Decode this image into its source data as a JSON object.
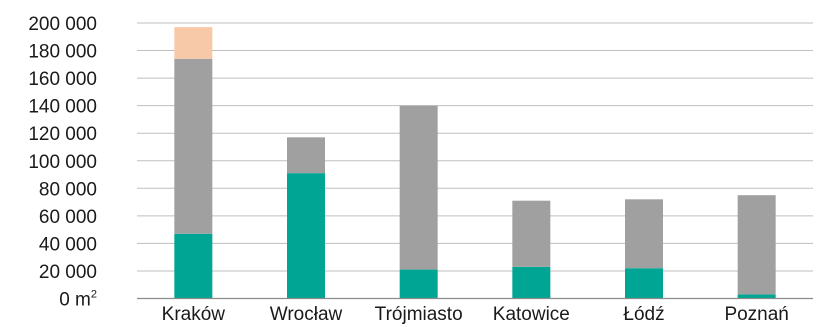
{
  "chart_data": {
    "type": "bar",
    "stacked": true,
    "categories": [
      "Kraków",
      "Wrocław",
      "Trójmiasto",
      "Katowice",
      "Łódź",
      "Poznań"
    ],
    "series": [
      {
        "color": "#00a693",
        "values": [
          47000,
          91000,
          21000,
          23000,
          22000,
          3000
        ]
      },
      {
        "color": "#a0a0a0",
        "values": [
          127000,
          26000,
          119000,
          48000,
          50000,
          72000
        ]
      },
      {
        "color": "#f8c9a8",
        "values": [
          23000,
          0,
          0,
          0,
          0,
          0
        ]
      }
    ],
    "y_ticks": [
      {
        "value": 0,
        "label": "0 m",
        "sup": "2"
      },
      {
        "value": 20000,
        "label": "20 000"
      },
      {
        "value": 40000,
        "label": "40 000"
      },
      {
        "value": 60000,
        "label": "60 000"
      },
      {
        "value": 80000,
        "label": "80 000"
      },
      {
        "value": 100000,
        "label": "100 000"
      },
      {
        "value": 120000,
        "label": "120 000"
      },
      {
        "value": 140000,
        "label": "140 000"
      },
      {
        "value": 160000,
        "label": "160 000"
      },
      {
        "value": 180000,
        "label": "180 000"
      },
      {
        "value": 200000,
        "label": "200 000"
      }
    ],
    "ylim": [
      0,
      200000
    ],
    "grid": true,
    "legend": false
  }
}
